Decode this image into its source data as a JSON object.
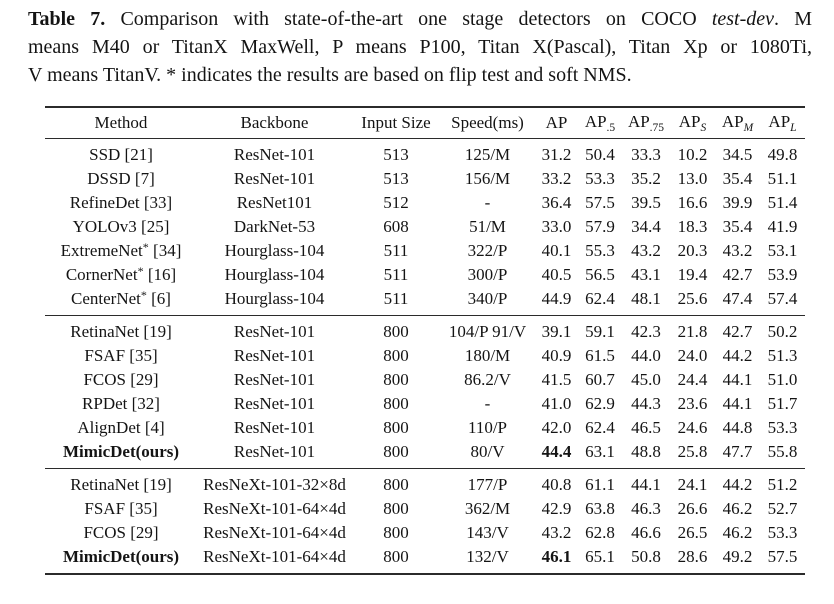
{
  "caption": {
    "lines": [
      [
        {
          "t": "Table 7.",
          "b": true
        },
        {
          "t": " Comparison with state-of-the-art one stage detectors on COCO "
        },
        {
          "t": "test-dev",
          "i": true
        },
        {
          "t": ". M"
        }
      ],
      [
        {
          "t": "means M40 or TitanX MaxWell, P means P100, Titan X(Pascal), Titan Xp or 1080Ti,"
        }
      ],
      [
        {
          "t": "V means TitanV. * indicates the results are based on flip test and soft NMS."
        }
      ]
    ]
  },
  "table": {
    "headers": [
      {
        "label": "Method"
      },
      {
        "label": "Backbone"
      },
      {
        "label": "Input Size"
      },
      {
        "label": "Speed(ms)"
      },
      {
        "label": "AP"
      },
      {
        "label": "AP",
        "sub": ".5"
      },
      {
        "label": "AP",
        "sub": ".75"
      },
      {
        "label": "AP",
        "sub": "S",
        "sub_italic": true
      },
      {
        "label": "AP",
        "sub": "M",
        "sub_italic": true
      },
      {
        "label": "AP",
        "sub": "L",
        "sub_italic": true
      }
    ],
    "groups": [
      {
        "rows": [
          {
            "method": "SSD [21]",
            "backbone": "ResNet-101",
            "input_size": "513",
            "speed": "125/M",
            "ap": [
              "31.2",
              "50.4",
              "33.3",
              "10.2",
              "34.5",
              "49.8"
            ]
          },
          {
            "method": "DSSD [7]",
            "backbone": "ResNet-101",
            "input_size": "513",
            "speed": "156/M",
            "ap": [
              "33.2",
              "53.3",
              "35.2",
              "13.0",
              "35.4",
              "51.1"
            ]
          },
          {
            "method": "RefineDet [33]",
            "backbone": "ResNet101",
            "input_size": "512",
            "speed": "-",
            "ap": [
              "36.4",
              "57.5",
              "39.5",
              "16.6",
              "39.9",
              "51.4"
            ]
          },
          {
            "method": "YOLOv3 [25]",
            "backbone": "DarkNet-53",
            "input_size": "608",
            "speed": "51/M",
            "ap": [
              "33.0",
              "57.9",
              "34.4",
              "18.3",
              "35.4",
              "41.9"
            ]
          },
          {
            "method": "ExtremeNet* [34]",
            "backbone": "Hourglass-104",
            "input_size": "511",
            "speed": "322/P",
            "ap": [
              "40.1",
              "55.3",
              "43.2",
              "20.3",
              "43.2",
              "53.1"
            ]
          },
          {
            "method": "CornerNet* [16]",
            "backbone": "Hourglass-104",
            "input_size": "511",
            "speed": "300/P",
            "ap": [
              "40.5",
              "56.5",
              "43.1",
              "19.4",
              "42.7",
              "53.9"
            ]
          },
          {
            "method": "CenterNet* [6]",
            "backbone": "Hourglass-104",
            "input_size": "511",
            "speed": "340/P",
            "ap": [
              "44.9",
              "62.4",
              "48.1",
              "25.6",
              "47.4",
              "57.4"
            ]
          }
        ]
      },
      {
        "rows": [
          {
            "method": "RetinaNet [19]",
            "backbone": "ResNet-101",
            "input_size": "800",
            "speed": "104/P 91/V",
            "ap": [
              "39.1",
              "59.1",
              "42.3",
              "21.8",
              "42.7",
              "50.2"
            ]
          },
          {
            "method": "FSAF [35]",
            "backbone": "ResNet-101",
            "input_size": "800",
            "speed": "180/M",
            "ap": [
              "40.9",
              "61.5",
              "44.0",
              "24.0",
              "44.2",
              "51.3"
            ]
          },
          {
            "method": "FCOS [29]",
            "backbone": "ResNet-101",
            "input_size": "800",
            "speed": "86.2/V",
            "ap": [
              "41.5",
              "60.7",
              "45.0",
              "24.4",
              "44.1",
              "51.0"
            ]
          },
          {
            "method": "RPDet [32]",
            "backbone": "ResNet-101",
            "input_size": "800",
            "speed": "-",
            "ap": [
              "41.0",
              "62.9",
              "44.3",
              "23.6",
              "44.1",
              "51.7"
            ]
          },
          {
            "method": "AlignDet [4]",
            "backbone": "ResNet-101",
            "input_size": "800",
            "speed": "110/P",
            "ap": [
              "42.0",
              "62.4",
              "46.5",
              "24.6",
              "44.8",
              "53.3"
            ]
          },
          {
            "method": "MimicDet(ours)",
            "backbone": "ResNet-101",
            "input_size": "800",
            "speed": "80/V",
            "ap": [
              "44.4",
              "63.1",
              "48.8",
              "25.8",
              "47.7",
              "55.8"
            ],
            "bold": true,
            "ap_bold": 0
          }
        ]
      },
      {
        "rows": [
          {
            "method": "RetinaNet [19]",
            "backbone": "ResNeXt-101-32×8d",
            "input_size": "800",
            "speed": "177/P",
            "ap": [
              "40.8",
              "61.1",
              "44.1",
              "24.1",
              "44.2",
              "51.2"
            ]
          },
          {
            "method": "FSAF [35]",
            "backbone": "ResNeXt-101-64×4d",
            "input_size": "800",
            "speed": "362/M",
            "ap": [
              "42.9",
              "63.8",
              "46.3",
              "26.6",
              "46.2",
              "52.7"
            ]
          },
          {
            "method": "FCOS [29]",
            "backbone": "ResNeXt-101-64×4d",
            "input_size": "800",
            "speed": "143/V",
            "ap": [
              "43.2",
              "62.8",
              "46.6",
              "26.5",
              "46.2",
              "53.3"
            ]
          },
          {
            "method": "MimicDet(ours)",
            "backbone": "ResNeXt-101-64×4d",
            "input_size": "800",
            "speed": "132/V",
            "ap": [
              "46.1",
              "65.1",
              "50.8",
              "28.6",
              "49.2",
              "57.5"
            ],
            "bold": true,
            "ap_bold": 0
          }
        ]
      }
    ]
  }
}
